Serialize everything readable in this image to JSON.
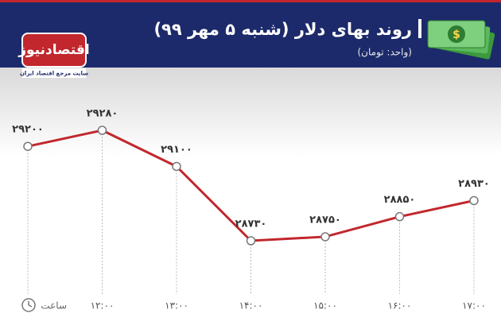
{
  "chart_data": {
    "type": "line",
    "title": "روند بهای دلار (شنبه ۵ مهر ۹۹)",
    "subtitle": "(واحد: تومان)",
    "brand": "اقتصادنیوز",
    "brand_tagline": "سایت مرجع اقتصاد ایران",
    "x_label": "ساعت",
    "categories": [
      null,
      "۱۲:۰۰",
      "۱۳:۰۰",
      "۱۴:۰۰",
      "۱۵:۰۰",
      "۱۶:۰۰",
      "۱۷:۰۰"
    ],
    "values": [
      29200,
      29280,
      29100,
      28730,
      28750,
      28850,
      28930
    ],
    "value_labels": [
      "۲۹۲۰۰",
      "۲۹۲۸۰",
      "۲۹۱۰۰",
      "۲۸۷۳۰",
      "۲۸۷۵۰",
      "۲۸۸۵۰",
      "۲۸۹۳۰"
    ],
    "color": "#c1272d"
  }
}
